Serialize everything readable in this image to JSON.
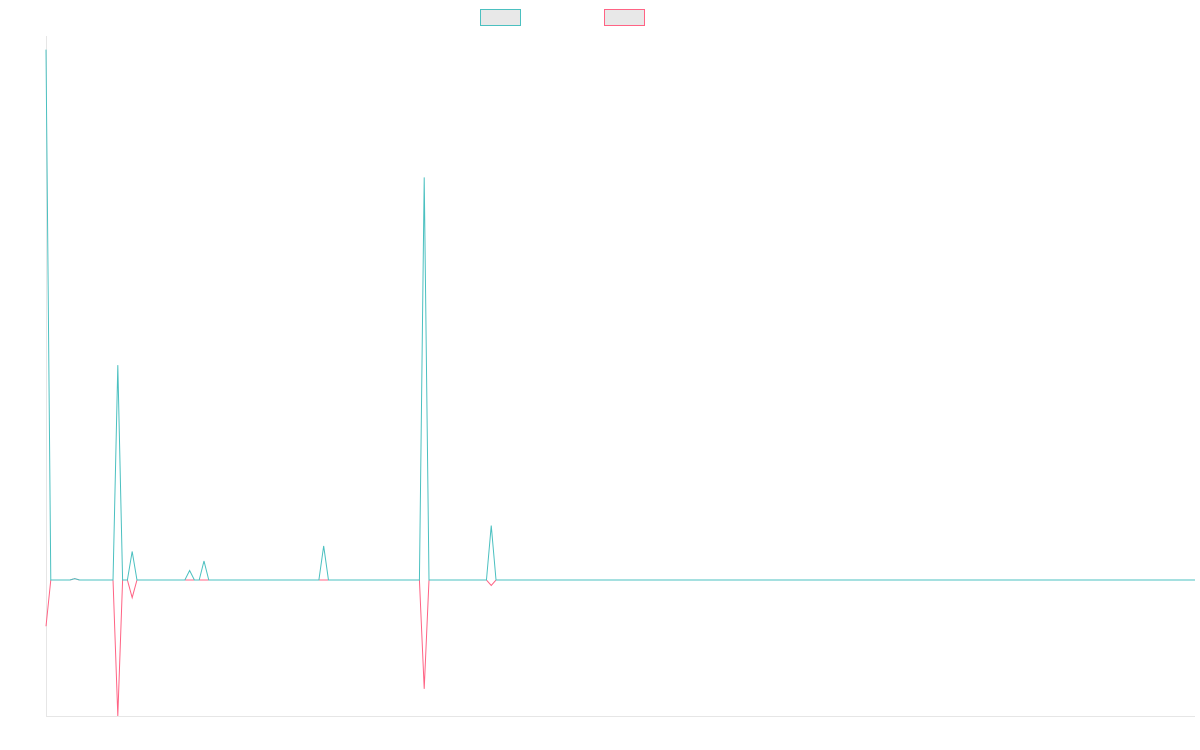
{
  "chart_data": {
    "type": "line",
    "title": "",
    "xlabel": "",
    "ylabel": "",
    "ylim": [
      -1.0,
      4.0
    ],
    "grid": false,
    "legend_position": "top-center",
    "series": [
      {
        "name": "",
        "color": "#4bc0c0",
        "values": [
          3.9,
          0,
          0,
          0,
          0,
          0,
          0.01,
          0,
          0,
          0,
          0,
          0,
          0,
          0,
          0,
          1.58,
          0,
          0,
          0.21,
          0,
          0,
          0,
          0,
          0,
          0,
          0,
          0,
          0,
          0,
          0,
          0.07,
          0,
          0,
          0.14,
          0,
          0,
          0,
          0,
          0,
          0,
          0,
          0,
          0,
          0,
          0,
          0,
          0,
          0,
          0,
          0,
          0,
          0,
          0,
          0,
          0,
          0,
          0,
          0,
          0.25,
          0,
          0,
          0,
          0,
          0,
          0,
          0,
          0,
          0,
          0,
          0,
          0,
          0,
          0,
          0,
          0,
          0,
          0,
          0,
          0,
          2.96,
          0,
          0,
          0,
          0,
          0,
          0,
          0,
          0,
          0,
          0,
          0,
          0,
          0,
          0.4,
          0,
          0,
          0,
          0,
          0,
          0,
          0,
          0,
          0,
          0,
          0,
          0,
          0,
          0,
          0,
          0,
          0,
          0,
          0,
          0,
          0,
          0,
          0,
          0,
          0,
          0,
          0,
          0,
          0,
          0,
          0,
          0,
          0,
          0,
          0,
          0,
          0,
          0,
          0,
          0,
          0,
          0,
          0,
          0,
          0,
          0,
          0,
          0,
          0,
          0,
          0,
          0,
          0,
          0,
          0,
          0,
          0,
          0,
          0,
          0,
          0,
          0,
          0,
          0,
          0,
          0,
          0,
          0,
          0,
          0,
          0,
          0,
          0,
          0,
          0,
          0,
          0,
          0,
          0,
          0,
          0,
          0,
          0,
          0,
          0,
          0,
          0,
          0,
          0,
          0,
          0,
          0,
          0,
          0,
          0,
          0,
          0,
          0,
          0,
          0,
          0,
          0,
          0,
          0,
          0,
          0,
          0,
          0,
          0,
          0,
          0,
          0,
          0,
          0,
          0,
          0,
          0,
          0,
          0,
          0,
          0,
          0,
          0,
          0,
          0,
          0,
          0,
          0,
          0,
          0,
          0,
          0,
          0,
          0,
          0,
          0,
          0,
          0,
          0,
          0,
          0,
          0,
          0,
          0,
          0,
          0,
          0
        ]
      },
      {
        "name": "",
        "color": "#ff6384",
        "values": [
          -0.34,
          0,
          0,
          0,
          0,
          0,
          0.01,
          0,
          0,
          0,
          0,
          0,
          0,
          0,
          0,
          -1.0,
          0,
          0,
          -0.13,
          0,
          0,
          0,
          0,
          0,
          0,
          0,
          0,
          0,
          0,
          0,
          0,
          0,
          0,
          0,
          0,
          0,
          0,
          0,
          0,
          0,
          0,
          0,
          0,
          0,
          0,
          0,
          0,
          0,
          0,
          0,
          0,
          0,
          0,
          0,
          0,
          0,
          0,
          0,
          0,
          0,
          0,
          0,
          0,
          0,
          0,
          0,
          0,
          0,
          0,
          0,
          0,
          0,
          0,
          0,
          0,
          0,
          0,
          0,
          0,
          -0.8,
          0,
          0,
          0,
          0,
          0,
          0,
          0,
          0,
          0,
          0,
          0,
          0,
          0,
          -0.04,
          0,
          0,
          0,
          0,
          0,
          0,
          0,
          0,
          0,
          0,
          0,
          0,
          0,
          0,
          0,
          0,
          0,
          0,
          0,
          0,
          0,
          0,
          0,
          0,
          0,
          0,
          0,
          0,
          0,
          0,
          0,
          0,
          0,
          0,
          0,
          0,
          0,
          0,
          0,
          0,
          0,
          0,
          0,
          0,
          0,
          0,
          0,
          0,
          0,
          0,
          0,
          0,
          0,
          0,
          0,
          0,
          0,
          0,
          0,
          0,
          0,
          0,
          0,
          0,
          0,
          0,
          0,
          0,
          0,
          0,
          0,
          0,
          0,
          0,
          0,
          0,
          0,
          0,
          0,
          0,
          0,
          0,
          0,
          0,
          0,
          0,
          0,
          0,
          0,
          0,
          0,
          0,
          0,
          0,
          0,
          0,
          0,
          0,
          0,
          0,
          0,
          0,
          0,
          0,
          0,
          0,
          0,
          0,
          0,
          0,
          0,
          0,
          0,
          0,
          0,
          0,
          0,
          0,
          0,
          0,
          0,
          0,
          0,
          0,
          0,
          0,
          0,
          0,
          0,
          0,
          0,
          0,
          0,
          0,
          0,
          0,
          0,
          0,
          0,
          0,
          0,
          0,
          0,
          0,
          0,
          0,
          0
        ]
      }
    ]
  }
}
